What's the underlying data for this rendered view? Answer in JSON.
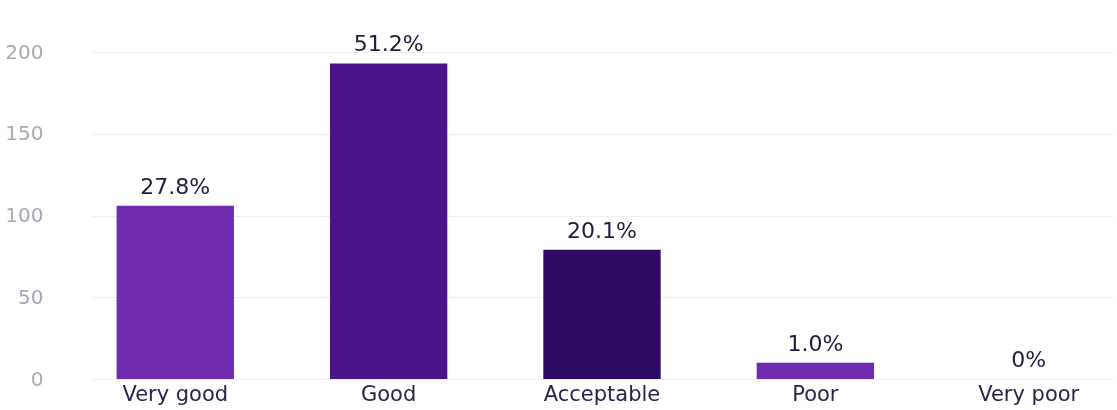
{
  "chart_data": {
    "type": "bar",
    "categories": [
      "Very good",
      "Good",
      "Acceptable",
      "Poor",
      "Very poor"
    ],
    "values": [
      106,
      193,
      79,
      10,
      0
    ],
    "colors": [
      "#6f2bb0",
      "#4a138a",
      "#2e0a63",
      "#6f2bb0",
      "#6f2bb0"
    ],
    "annotations": [
      {
        "text": "27.8%",
        "x": "Very good",
        "y": 106
      },
      {
        "text": "51.2%",
        "x": "Good",
        "y": 193
      },
      {
        "text": "20.1%",
        "x": "Acceptable",
        "y": 79
      },
      {
        "text": "1.0%",
        "x": "Poor",
        "y": 10
      },
      {
        "text": "0%",
        "x": "Very poor",
        "y": 0
      }
    ],
    "ylim": [
      0,
      200
    ],
    "yticks": [
      0,
      50,
      100,
      150,
      200
    ],
    "grid": "y"
  }
}
